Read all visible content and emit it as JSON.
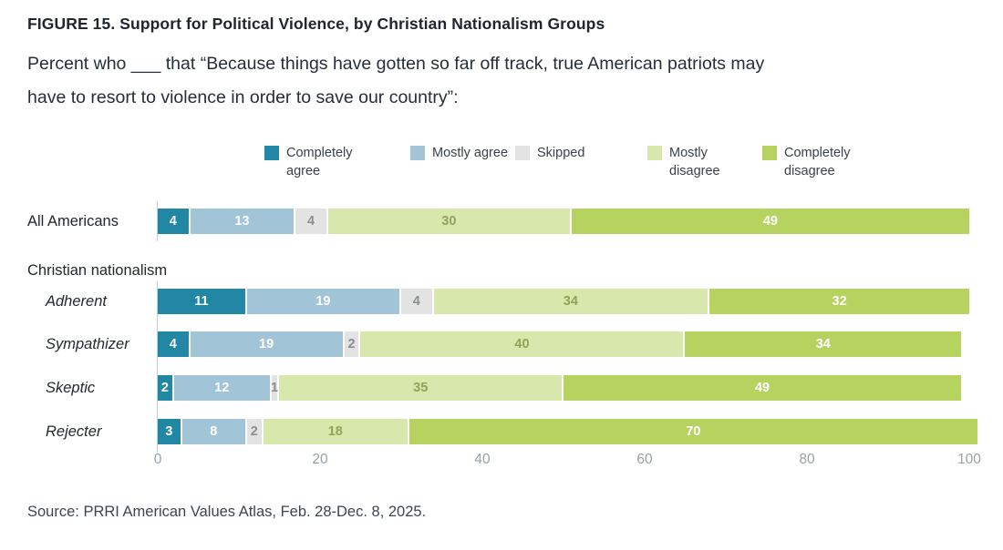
{
  "title": "FIGURE 15.  Support for Political Violence, by Christian Nationalism Groups",
  "subtitle": {
    "line1": "Percent who ___ that “Because things have gotten so far off track, true American patriots may",
    "line2": "have to resort to violence in order to save our country”:"
  },
  "section_label": "Christian nationalism",
  "source": "Source: PRRI American Values Atlas, Feb. 28-Dec. 8, 2025.",
  "chart_data": {
    "type": "bar",
    "variant": "horizontal-stacked",
    "xlim": [
      0,
      100
    ],
    "x_ticks": [
      0,
      20,
      40,
      60,
      80,
      100
    ],
    "grid": false,
    "legend_position": "top",
    "group_heading": "Christian nationalism",
    "categories": [
      "All Americans",
      "Adherent",
      "Sympathizer",
      "Skeptic",
      "Rejecter"
    ],
    "category_styles": [
      "regular",
      "italic",
      "italic",
      "italic",
      "italic"
    ],
    "series": [
      {
        "name": "Completely agree",
        "color": "#2187A5",
        "value_label_color": "#ffffff",
        "values": [
          4,
          11,
          4,
          2,
          3
        ]
      },
      {
        "name": "Mostly agree",
        "color": "#A1C4D7",
        "value_label_color": "#ffffff",
        "values": [
          13,
          19,
          19,
          12,
          8
        ]
      },
      {
        "name": "Skipped",
        "color": "#E3E3E3",
        "value_label_color": "#8A8F93",
        "values": [
          4,
          4,
          2,
          1,
          2
        ]
      },
      {
        "name": "Mostly disagree",
        "color": "#D8E7AC",
        "value_label_color": "#93A15C",
        "values": [
          30,
          34,
          40,
          35,
          18
        ]
      },
      {
        "name": "Completely disagree",
        "color": "#B6D25F",
        "value_label_color": "#ffffff",
        "values": [
          49,
          32,
          34,
          49,
          70
        ]
      }
    ]
  }
}
